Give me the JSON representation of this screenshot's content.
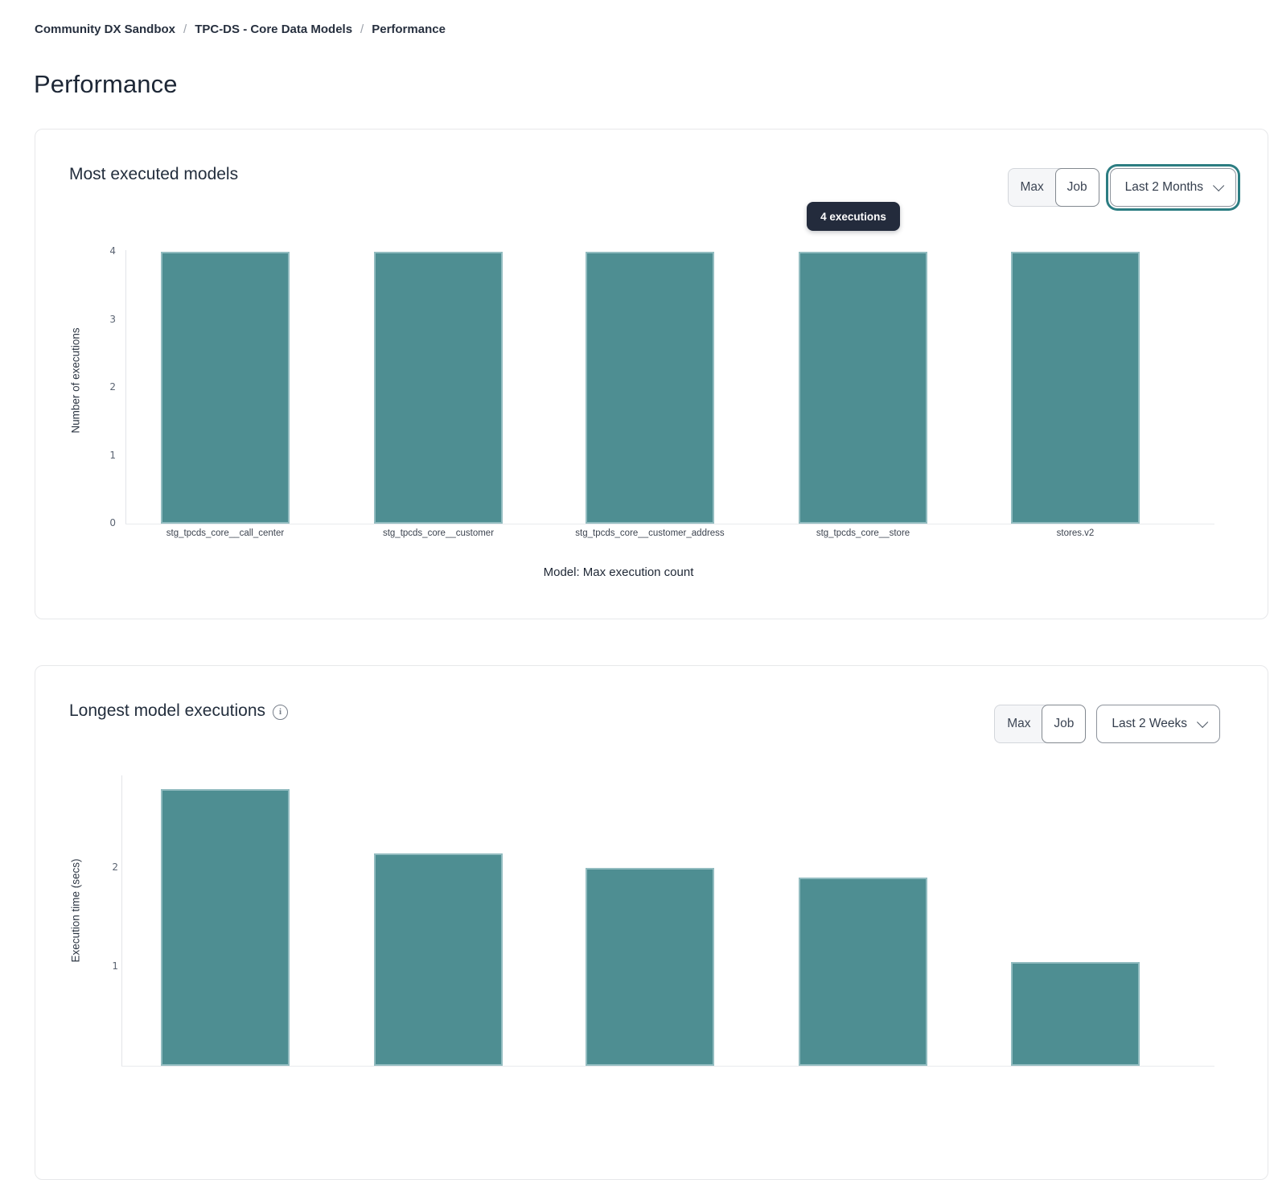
{
  "breadcrumb": {
    "separator": "/",
    "items": [
      "Community DX Sandbox",
      "TPC-DS - Core Data Models",
      "Performance"
    ]
  },
  "page_title": "Performance",
  "colors": {
    "bar": "#4e8e92",
    "tooltip_bg": "#232b3c",
    "focus_ring": "#2c7d82",
    "card_border": "#e7e8ea"
  },
  "icons": {
    "info": "info-icon",
    "chevron_down": "chevron-down-icon"
  },
  "cards": [
    {
      "title": "Most executed models",
      "toggle": {
        "options": [
          "Max",
          "Job"
        ],
        "selected": "Job"
      },
      "dropdown": {
        "value": "Last 2 Months",
        "focused": true
      },
      "tooltip": "4 executions"
    },
    {
      "title": "Longest model executions",
      "toggle": {
        "options": [
          "Max",
          "Job"
        ],
        "selected": "Job"
      },
      "dropdown": {
        "value": "Last 2 Weeks",
        "focused": false
      }
    }
  ],
  "chart_data": [
    {
      "type": "bar",
      "title": "Most executed models",
      "categories": [
        "stg_tpcds_core__call_center",
        "stg_tpcds_core__customer",
        "stg_tpcds_core__customer_address",
        "stg_tpcds_core__store",
        "stores.v2"
      ],
      "values": [
        4,
        4,
        4,
        4,
        4
      ],
      "ylabel": "Number of executions",
      "xlabel": "Model: Max execution count",
      "yticks": [
        0,
        1,
        2,
        3,
        4
      ],
      "ylim": [
        0,
        4
      ],
      "legend": "none",
      "grid": "off",
      "tooltip_visible": "4 executions"
    },
    {
      "type": "bar",
      "title": "Longest model executions",
      "values": [
        2.8,
        2.15,
        2.0,
        1.9,
        1.05
      ],
      "ylabel": "Execution time (secs)",
      "yticks": [
        1,
        2
      ],
      "ylim": [
        0,
        2.9
      ],
      "legend": "none",
      "grid": "off",
      "note_visible_region": "chart bottom clipped by viewport"
    }
  ]
}
